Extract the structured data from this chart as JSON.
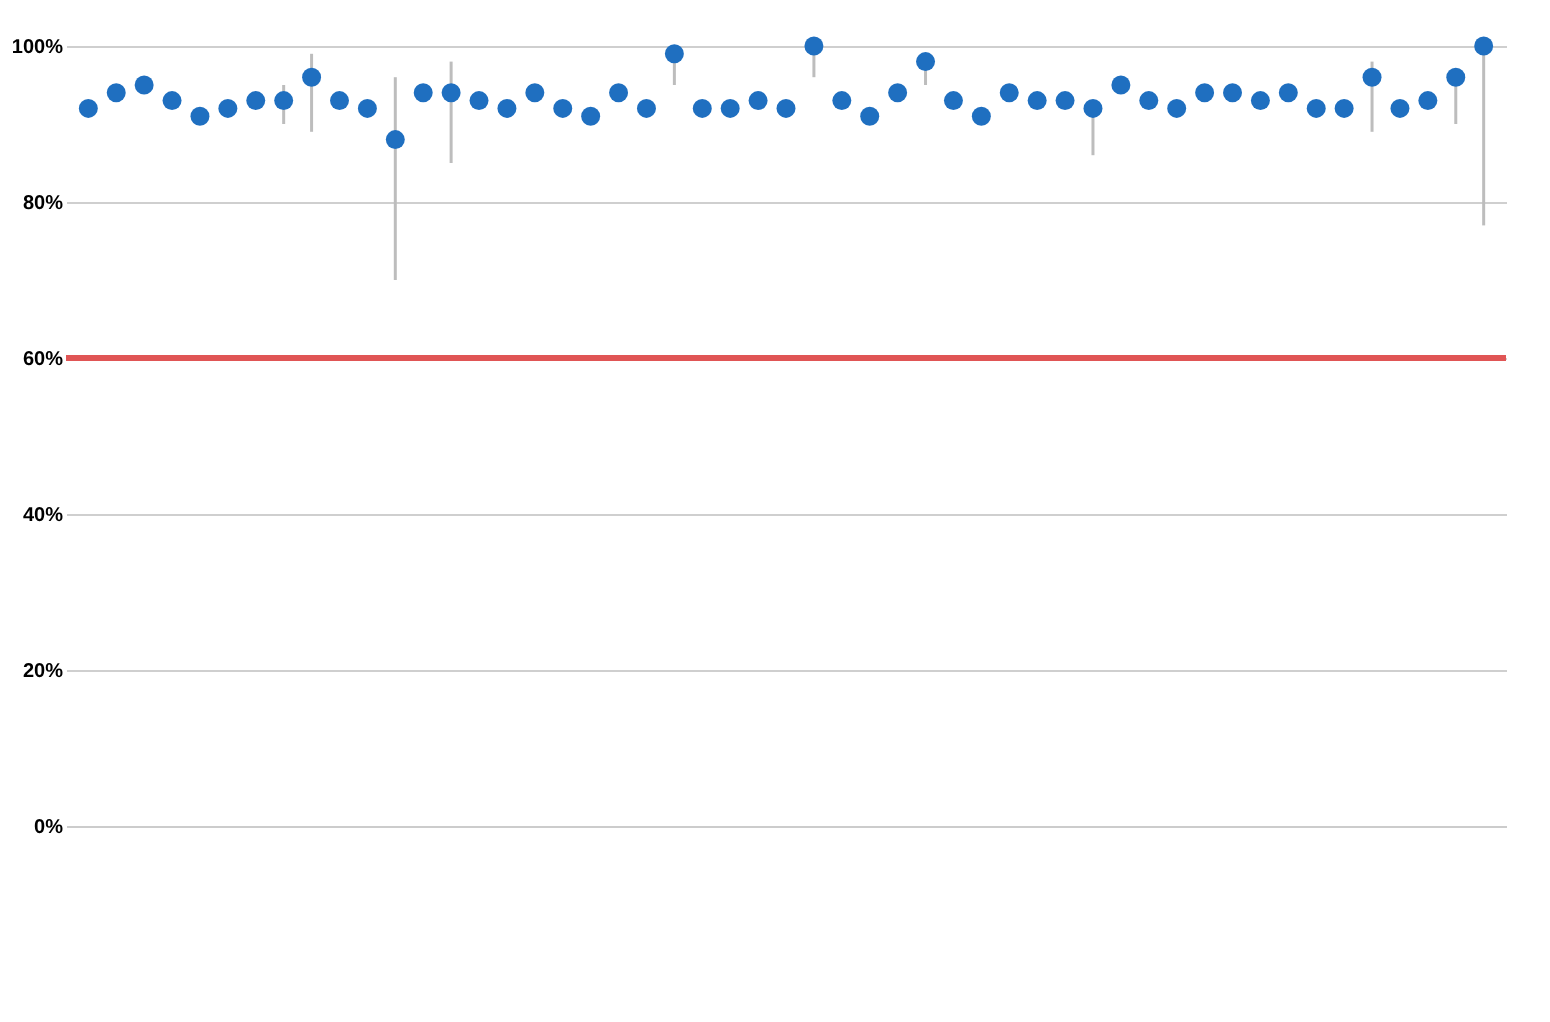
{
  "chart_data": {
    "type": "scatter",
    "categories": [
      null,
      null,
      null,
      null,
      null,
      null,
      null,
      null,
      null,
      null,
      null,
      null,
      null,
      null,
      null,
      null,
      null,
      null,
      null,
      null,
      null,
      null,
      null,
      null,
      null,
      null,
      null,
      null,
      null,
      null,
      null,
      null,
      null,
      null,
      null,
      null,
      null,
      null,
      null,
      null,
      null,
      null,
      null,
      null,
      null,
      null,
      null,
      null,
      null,
      null,
      null
    ],
    "series": [
      {
        "color": "#1f6fc0",
        "values": [
          92,
          94,
          95,
          93,
          91,
          92,
          93,
          93,
          96,
          93,
          92,
          88,
          94,
          94,
          93,
          92,
          94,
          92,
          91,
          94,
          92,
          99,
          92,
          92,
          93,
          92,
          100,
          93,
          91,
          94,
          98,
          93,
          91,
          94,
          93,
          93,
          92,
          95,
          93,
          92,
          94,
          94,
          93,
          94,
          92,
          92,
          96,
          92,
          93,
          96,
          100
        ],
        "errors": [
          null,
          null,
          null,
          null,
          null,
          null,
          null,
          [
            90,
            95
          ],
          [
            89,
            99
          ],
          null,
          null,
          [
            70,
            96
          ],
          null,
          [
            85,
            98
          ],
          null,
          null,
          null,
          null,
          null,
          null,
          null,
          [
            95,
            99
          ],
          null,
          null,
          null,
          null,
          [
            96,
            100
          ],
          null,
          null,
          null,
          [
            95,
            99
          ],
          null,
          null,
          null,
          null,
          null,
          [
            86,
            91
          ],
          null,
          null,
          null,
          null,
          null,
          null,
          null,
          null,
          null,
          [
            89,
            98
          ],
          null,
          null,
          [
            90,
            96
          ],
          [
            77,
            100
          ]
        ]
      }
    ],
    "ylim": [
      0,
      100
    ],
    "yticks": [
      {
        "value": 0,
        "label": "0%"
      },
      {
        "value": 20,
        "label": "20%"
      },
      {
        "value": 40,
        "label": "40%"
      },
      {
        "value": 60,
        "label": "60%"
      },
      {
        "value": 80,
        "label": "80%"
      },
      {
        "value": 100,
        "label": "100%"
      }
    ],
    "grid": "y",
    "marker": "circle",
    "tick_labels": "y",
    "ref_lines": [
      {
        "axis": "y",
        "value": 60,
        "color": "#e05555"
      }
    ]
  }
}
